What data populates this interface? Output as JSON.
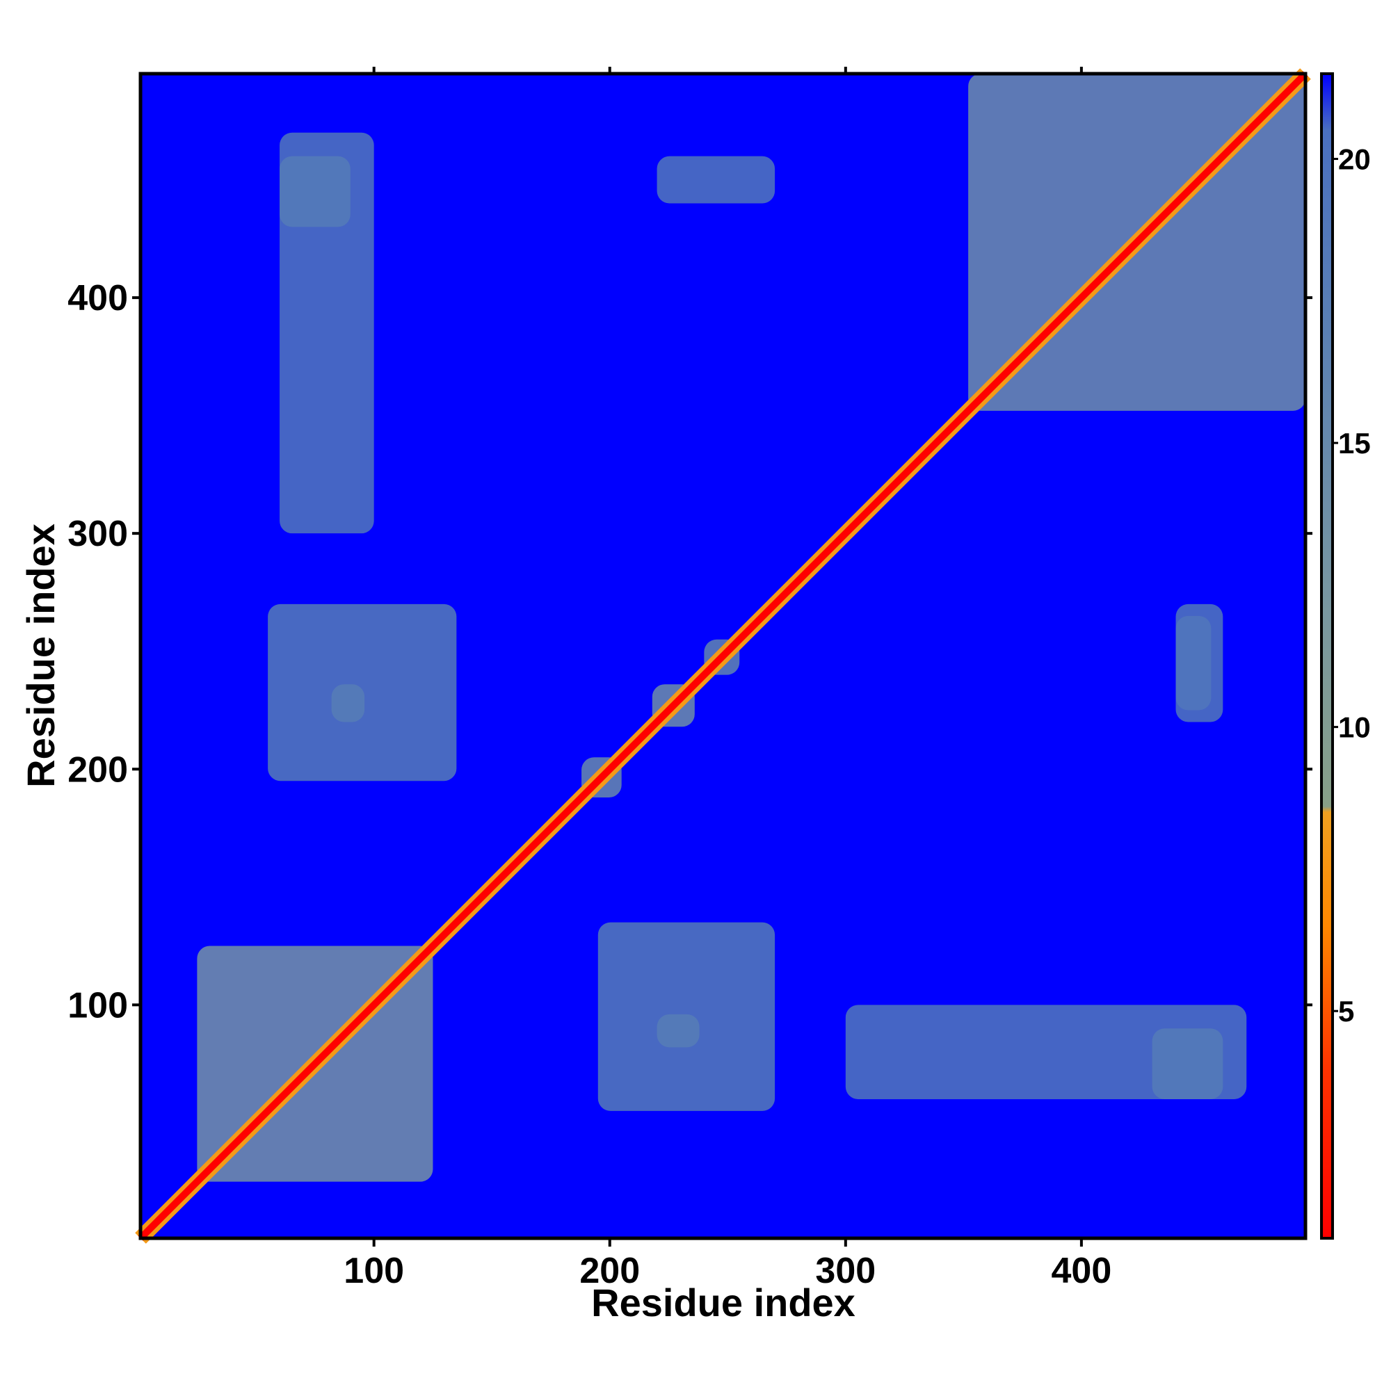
{
  "chart_data": {
    "type": "heatmap",
    "title": "",
    "xlabel": "Residue index",
    "ylabel": "Residue index",
    "n_residues": 495,
    "xlim": [
      1,
      495
    ],
    "ylim": [
      1,
      495
    ],
    "x_ticks": [
      100,
      200,
      300,
      400
    ],
    "y_ticks": [
      100,
      200,
      300,
      400
    ],
    "x_tick_labels": [
      "100",
      "200",
      "300",
      "400"
    ],
    "y_tick_labels": [
      "100",
      "200",
      "300",
      "400"
    ],
    "grid": false,
    "legend": "right",
    "colorbar": {
      "range": [
        1,
        21.5
      ],
      "ticks": [
        5,
        10,
        15,
        20
      ],
      "tick_labels": [
        "5",
        "10",
        "15",
        "20"
      ],
      "stops": [
        {
          "value": 1,
          "color": "#ff0000"
        },
        {
          "value": 4,
          "color": "#ff3300"
        },
        {
          "value": 6.5,
          "color": "#ff8800"
        },
        {
          "value": 8.5,
          "color": "#f0a020"
        },
        {
          "value": 8.6,
          "color": "#88a088"
        },
        {
          "value": 12,
          "color": "#7a98a0"
        },
        {
          "value": 17,
          "color": "#5a80b4"
        },
        {
          "value": 20.5,
          "color": "#4a70c0"
        },
        {
          "value": 21.5,
          "color": "#0000ff"
        }
      ]
    },
    "background_value": 21.5,
    "diagonal_band_width": 3,
    "contact_regions": [
      {
        "x": [
          25,
          125
        ],
        "y": [
          25,
          125
        ],
        "level": 13
      },
      {
        "x": [
          352,
          495
        ],
        "y": [
          352,
          495
        ],
        "level": 14
      },
      {
        "x": [
          218,
          236
        ],
        "y": [
          218,
          236
        ],
        "level": 14
      },
      {
        "x": [
          188,
          205
        ],
        "y": [
          188,
          205
        ],
        "level": 15
      },
      {
        "x": [
          240,
          255
        ],
        "y": [
          240,
          255
        ],
        "level": 16
      },
      {
        "x": [
          82,
          96
        ],
        "y": [
          220,
          236
        ],
        "level": 16
      },
      {
        "x": [
          220,
          238
        ],
        "y": [
          82,
          96
        ],
        "level": 16
      },
      {
        "x": [
          55,
          135
        ],
        "y": [
          195,
          270
        ],
        "level": 18
      },
      {
        "x": [
          195,
          270
        ],
        "y": [
          55,
          135
        ],
        "level": 18
      },
      {
        "x": [
          60,
          100
        ],
        "y": [
          300,
          470
        ],
        "level": 19
      },
      {
        "x": [
          300,
          470
        ],
        "y": [
          60,
          100
        ],
        "level": 19
      },
      {
        "x": [
          220,
          270
        ],
        "y": [
          440,
          460
        ],
        "level": 19
      },
      {
        "x": [
          440,
          460
        ],
        "y": [
          220,
          270
        ],
        "level": 19
      },
      {
        "x": [
          430,
          460
        ],
        "y": [
          60,
          90
        ],
        "level": 18
      },
      {
        "x": [
          60,
          90
        ],
        "y": [
          430,
          460
        ],
        "level": 18
      },
      {
        "x": [
          440,
          455
        ],
        "y": [
          225,
          265
        ],
        "level": 19
      }
    ]
  }
}
